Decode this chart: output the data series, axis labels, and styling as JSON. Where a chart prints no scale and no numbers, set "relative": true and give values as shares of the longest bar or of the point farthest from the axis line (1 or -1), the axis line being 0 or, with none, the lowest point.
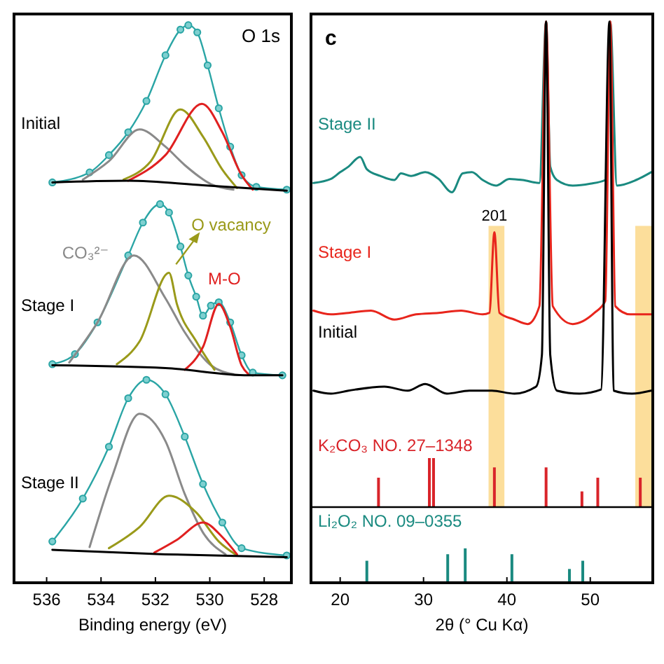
{
  "chart_data": [
    {
      "type": "line",
      "relative": true,
      "xlim": [
        537.2,
        527
      ],
      "xticks": [
        536,
        534,
        532,
        530,
        528
      ],
      "xlabel": "Binding energy (eV)",
      "annotations": [
        "O 1s"
      ],
      "series": [
        {
          "name": "Initial",
          "color": "#2aa5a5",
          "marker": "circle",
          "x": [
            535.79,
            534.42,
            533.71,
            533.0,
            532.33,
            531.63,
            531.08,
            530.79,
            530.46,
            530.08,
            529.67,
            529.25,
            528.83,
            528.29,
            527.17
          ],
          "values": [
            0.718,
            0.736,
            0.767,
            0.808,
            0.864,
            0.946,
            0.992,
            1,
            0.987,
            0.928,
            0.851,
            0.782,
            0.731,
            0.71,
            0.705
          ]
        },
        {
          "color": "#8a8a8a",
          "x": [
            534.67,
            533.71,
            532.58,
            531.63,
            530.92,
            529.96,
            529.13
          ],
          "values": [
            0.723,
            0.756,
            0.813,
            0.782,
            0.749,
            0.715,
            0.705
          ]
        },
        {
          "color": "#9a9a1a",
          "x": [
            533.17,
            532.17,
            531.08,
            530.25,
            529.54,
            529.0
          ],
          "values": [
            0.723,
            0.756,
            0.849,
            0.8,
            0.741,
            0.708
          ]
        },
        {
          "color": "#e02020",
          "x": [
            533.0,
            531.63,
            530.29,
            529.54,
            528.83,
            528.42
          ],
          "values": [
            0.721,
            0.767,
            0.859,
            0.808,
            0.731,
            0.705
          ]
        },
        {
          "color": "#000000",
          "x": [
            535.79,
            533.0,
            530.25,
            527.17
          ],
          "values": [
            0.718,
            0.721,
            0.713,
            0.703
          ]
        },
        {
          "name": "Stage I",
          "color": "#2aa5a5",
          "marker": "circle",
          "x": [
            535.79,
            534.96,
            534.13,
            533.0,
            532.46,
            531.83,
            531.5,
            531.08,
            530.79,
            530.5,
            530.25,
            529.96,
            529.67,
            529.25,
            528.83,
            528.42,
            527.33
          ],
          "values": [
            0.392,
            0.41,
            0.467,
            0.587,
            0.646,
            0.679,
            0.664,
            0.603,
            0.551,
            0.513,
            0.479,
            0.497,
            0.503,
            0.467,
            0.408,
            0.377,
            0.372
          ]
        },
        {
          "name": "CO₃²⁻",
          "color": "#8a8a8a",
          "x": [
            535.17,
            534.13,
            532.79,
            531.63,
            530.92,
            529.96,
            529.13
          ],
          "values": [
            0.395,
            0.467,
            0.587,
            0.51,
            0.449,
            0.39,
            0.374
          ]
        },
        {
          "name": "O vacancy",
          "color": "#9a9a1a",
          "x": [
            533.42,
            532.58,
            531.5,
            531.21,
            530.5,
            529.83
          ],
          "values": [
            0.392,
            0.433,
            0.556,
            0.5,
            0.433,
            0.382
          ]
        },
        {
          "name": "M-O",
          "color": "#e02020",
          "x": [
            530.92,
            530.25,
            529.67,
            529.25,
            528.83,
            528.58
          ],
          "values": [
            0.382,
            0.423,
            0.5,
            0.459,
            0.39,
            0.374
          ]
        },
        {
          "color": "#000000",
          "x": [
            535.79,
            531.63,
            528.58,
            527.33
          ],
          "values": [
            0.39,
            0.385,
            0.372,
            0.372
          ]
        },
        {
          "name": "Stage II",
          "color": "#2aa5a5",
          "marker": "circle",
          "x": [
            535.79,
            534.67,
            533.71,
            533.0,
            532.33,
            531.63,
            530.92,
            530.25,
            529.54,
            528.83,
            527.17
          ],
          "values": [
            0.074,
            0.151,
            0.244,
            0.331,
            0.364,
            0.338,
            0.262,
            0.177,
            0.108,
            0.062,
            0.049
          ]
        },
        {
          "color": "#8a8a8a",
          "x": [
            534.42,
            533.58,
            532.58,
            531.63,
            530.92,
            530.25,
            529.42
          ],
          "values": [
            0.064,
            0.192,
            0.303,
            0.254,
            0.159,
            0.09,
            0.051
          ]
        },
        {
          "color": "#9a9a1a",
          "x": [
            533.71,
            532.58,
            531.5,
            530.5,
            529.67,
            529.0
          ],
          "values": [
            0.062,
            0.1,
            0.156,
            0.126,
            0.074,
            0.049
          ]
        },
        {
          "color": "#e02020",
          "x": [
            532.04,
            531.21,
            530.25,
            529.54,
            529.0
          ],
          "values": [
            0.054,
            0.077,
            0.108,
            0.082,
            0.051
          ]
        },
        {
          "color": "#000000",
          "x": [
            535.79,
            531.63,
            527.17
          ],
          "values": [
            0.059,
            0.051,
            0.046
          ]
        }
      ]
    },
    {
      "type": "line",
      "relative": true,
      "xlim": [
        16.5,
        57.5
      ],
      "annotations": [
        "c",
        {
          "text": "201",
          "x": 38.5,
          "y": 0.434
        }
      ],
      "bands": [
        {
          "axis": "x",
          "from": 37.8,
          "to": 39.7,
          "color": "#fbd88a"
        },
        {
          "axis": "x",
          "from": 55.4,
          "to": 57.5,
          "color": "#fbd88a"
        }
      ],
      "series": [
        {
          "name": "Stage II",
          "color": "#1a8a80",
          "x": [
            16.8,
            18.9,
            20.0,
            21.0,
            22.4,
            23.2,
            24.8,
            26.5,
            27.3,
            28.5,
            30.2,
            31.8,
            33.4,
            34.7,
            35.8,
            37.1,
            38.7,
            40.3,
            41.9,
            43.9,
            44.7,
            45.2,
            46.0,
            47.9,
            50.0,
            51.8,
            52.4,
            53.2,
            55.5,
            57.3
          ],
          "values": [
            0.566,
            0.577,
            0.595,
            0.61,
            0.636,
            0.603,
            0.585,
            0.574,
            0.592,
            0.585,
            0.595,
            0.577,
            0.541,
            0.592,
            0.595,
            0.574,
            0.559,
            0.577,
            0.574,
            0.566,
            1,
            0.61,
            0.574,
            0.559,
            0.564,
            0.574,
            1,
            0.559,
            0.574,
            0.595
          ]
        },
        {
          "name": "Stage I",
          "color": "#e8251c",
          "x": [
            16.8,
            18.9,
            21.0,
            23.7,
            26.5,
            29.1,
            31.8,
            34.5,
            37.1,
            37.9,
            38.5,
            39.1,
            40.9,
            42.5,
            43.9,
            44.7,
            45.5,
            47.9,
            50.5,
            51.8,
            52.4,
            53.0,
            54.8,
            57.3
          ],
          "values": [
            0.223,
            0.213,
            0.217,
            0.223,
            0.199,
            0.213,
            0.217,
            0.223,
            0.213,
            0.217,
            0.434,
            0.217,
            0.199,
            0.187,
            0.235,
            1,
            0.235,
            0.187,
            0.217,
            0.249,
            1,
            0.235,
            0.213,
            0.213
          ]
        },
        {
          "name": "Initial",
          "color": "#000000",
          "x": [
            16.8,
            18.9,
            21.0,
            25.3,
            28.1,
            30.2,
            32.8,
            35.5,
            38.2,
            40.9,
            43.5,
            44.2,
            44.7,
            45.2,
            46.0,
            48.7,
            51.3,
            52.3,
            52.8,
            55.0,
            57.3
          ],
          "values": [
            0.008,
            0,
            0.008,
            0.019,
            0.008,
            0.026,
            0,
            0.008,
            0.008,
            0,
            0.019,
            0.104,
            1,
            0.104,
            0.008,
            0,
            0.011,
            1,
            0.008,
            0,
            0.008
          ]
        }
      ]
    },
    {
      "type": "bar",
      "relative": true,
      "xlim": [
        16.5,
        57.5
      ],
      "bands": [
        {
          "axis": "x",
          "from": 37.8,
          "to": 39.7,
          "color": "#fbd88a"
        },
        {
          "axis": "x",
          "from": 55.4,
          "to": 57.5,
          "color": "#fbd88a"
        }
      ],
      "series": [
        {
          "name": "K₂CO₃ NO. 27–1348",
          "color": "#d9242a",
          "x": [
            24.6,
            30.7,
            31.2,
            38.5,
            44.7,
            49.0,
            50.9,
            56.0
          ],
          "values": [
            0.6,
            1,
            1,
            0.81,
            0.81,
            0.32,
            0.6,
            0.6
          ]
        }
      ]
    },
    {
      "type": "bar",
      "relative": true,
      "xlim": [
        16.5,
        57.5
      ],
      "xticks": [
        20,
        30,
        40,
        50
      ],
      "xlabel": "2θ (° Cu Kα)",
      "series": [
        {
          "name": "Li₂O₂ NO. 09–0355",
          "color": "#1a8a80",
          "x": [
            23.2,
            32.9,
            35.0,
            40.6,
            47.5,
            49.1
          ],
          "values": [
            0.64,
            0.83,
            1,
            0.83,
            0.4,
            0.64
          ]
        }
      ]
    }
  ]
}
